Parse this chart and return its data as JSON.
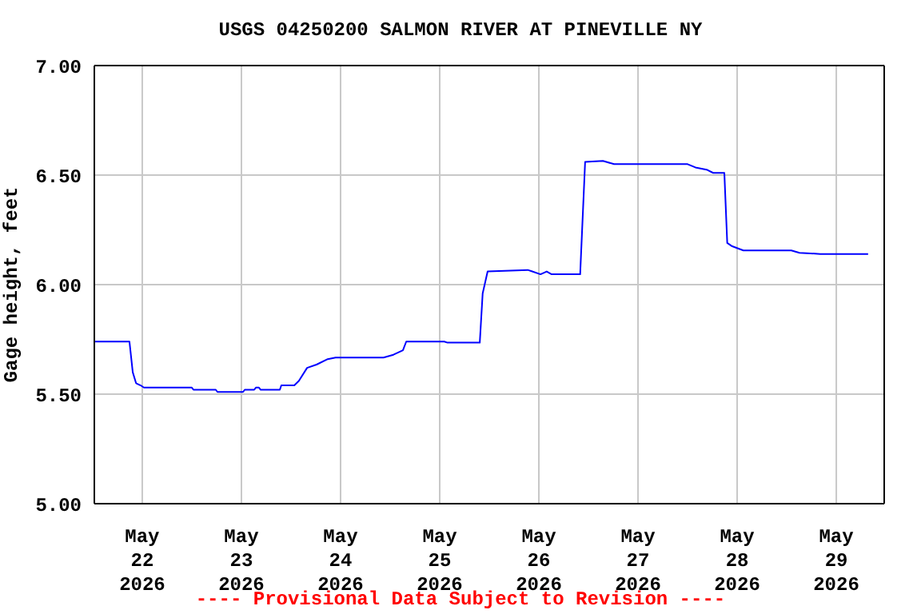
{
  "chart_data": {
    "type": "line",
    "title": "USGS 04250200 SALMON RIVER AT PINEVILLE NY",
    "ylabel": "Gage height, feet",
    "annotations": [
      "---- Provisional Data Subject to Revision ----"
    ],
    "x": [
      "2026-05-21T12:24",
      "2026-05-21T20:54",
      "2026-05-21T21:42",
      "2026-05-21T22:30",
      "2026-05-21T23:36",
      "2026-05-22T00:24",
      "2026-05-22T12:00",
      "2026-05-22T12:24",
      "2026-05-22T17:48",
      "2026-05-22T18:12",
      "2026-05-23T00:24",
      "2026-05-23T00:48",
      "2026-05-23T03:06",
      "2026-05-23T03:30",
      "2026-05-23T04:15",
      "2026-05-23T04:40",
      "2026-05-23T09:18",
      "2026-05-23T09:40",
      "2026-05-23T12:48",
      "2026-05-23T13:54",
      "2026-05-23T15:54",
      "2026-05-23T18:12",
      "2026-05-23T20:54",
      "2026-05-23T22:48",
      "2026-05-24T10:24",
      "2026-05-24T12:48",
      "2026-05-24T15:06",
      "2026-05-24T15:54",
      "2026-05-25T01:06",
      "2026-05-25T01:54",
      "2026-05-25T09:42",
      "2026-05-25T10:24",
      "2026-05-25T11:36",
      "2026-05-25T21:18",
      "2026-05-25T22:24",
      "2026-05-26T00:24",
      "2026-05-26T01:54",
      "2026-05-26T03:06",
      "2026-05-26T10:00",
      "2026-05-26T11:12",
      "2026-05-26T15:30",
      "2026-05-26T18:12",
      "2026-05-27T12:00",
      "2026-05-27T13:54",
      "2026-05-27T16:36",
      "2026-05-27T18:12",
      "2026-05-27T20:54",
      "2026-05-27T21:36",
      "2026-05-27T22:48",
      "2026-05-28T01:30",
      "2026-05-28T13:06",
      "2026-05-28T15:06",
      "2026-05-28T20:06",
      "2026-05-29T07:42"
    ],
    "series": [
      {
        "color": "#0000ff",
        "values": [
          5.74,
          5.74,
          5.6,
          5.55,
          5.54,
          5.53,
          5.53,
          5.52,
          5.52,
          5.51,
          5.51,
          5.52,
          5.52,
          5.53,
          5.53,
          5.52,
          5.52,
          5.54,
          5.54,
          5.56,
          5.62,
          5.635,
          5.66,
          5.667,
          5.667,
          5.68,
          5.7,
          5.74,
          5.74,
          5.735,
          5.735,
          5.96,
          6.06,
          6.067,
          6.06,
          6.047,
          6.06,
          6.047,
          6.047,
          6.56,
          6.565,
          6.55,
          6.55,
          6.535,
          6.525,
          6.51,
          6.51,
          6.19,
          6.175,
          6.156,
          6.156,
          6.145,
          6.14,
          6.14
        ]
      }
    ],
    "xlim": [
      "2026-05-21T12:24",
      "2026-05-29T11:36"
    ],
    "xticks": [
      {
        "value": "2026-05-22",
        "label": "May\n22\n2026"
      },
      {
        "value": "2026-05-23",
        "label": "May\n23\n2026"
      },
      {
        "value": "2026-05-24",
        "label": "May\n24\n2026"
      },
      {
        "value": "2026-05-25",
        "label": "May\n25\n2026"
      },
      {
        "value": "2026-05-26",
        "label": "May\n26\n2026"
      },
      {
        "value": "2026-05-27",
        "label": "May\n27\n2026"
      },
      {
        "value": "2026-05-28",
        "label": "May\n28\n2026"
      },
      {
        "value": "2026-05-29",
        "label": "May\n29\n2026"
      }
    ],
    "ylim": [
      5,
      7
    ],
    "yticks": [
      {
        "value": 5,
        "label": "5.00"
      },
      {
        "value": 5.5,
        "label": "5.50"
      },
      {
        "value": 6,
        "label": "6.00"
      },
      {
        "value": 6.5,
        "label": "6.50"
      },
      {
        "value": 7,
        "label": "7.00"
      }
    ],
    "grid": true,
    "marker": "none",
    "line_style": "solid"
  }
}
